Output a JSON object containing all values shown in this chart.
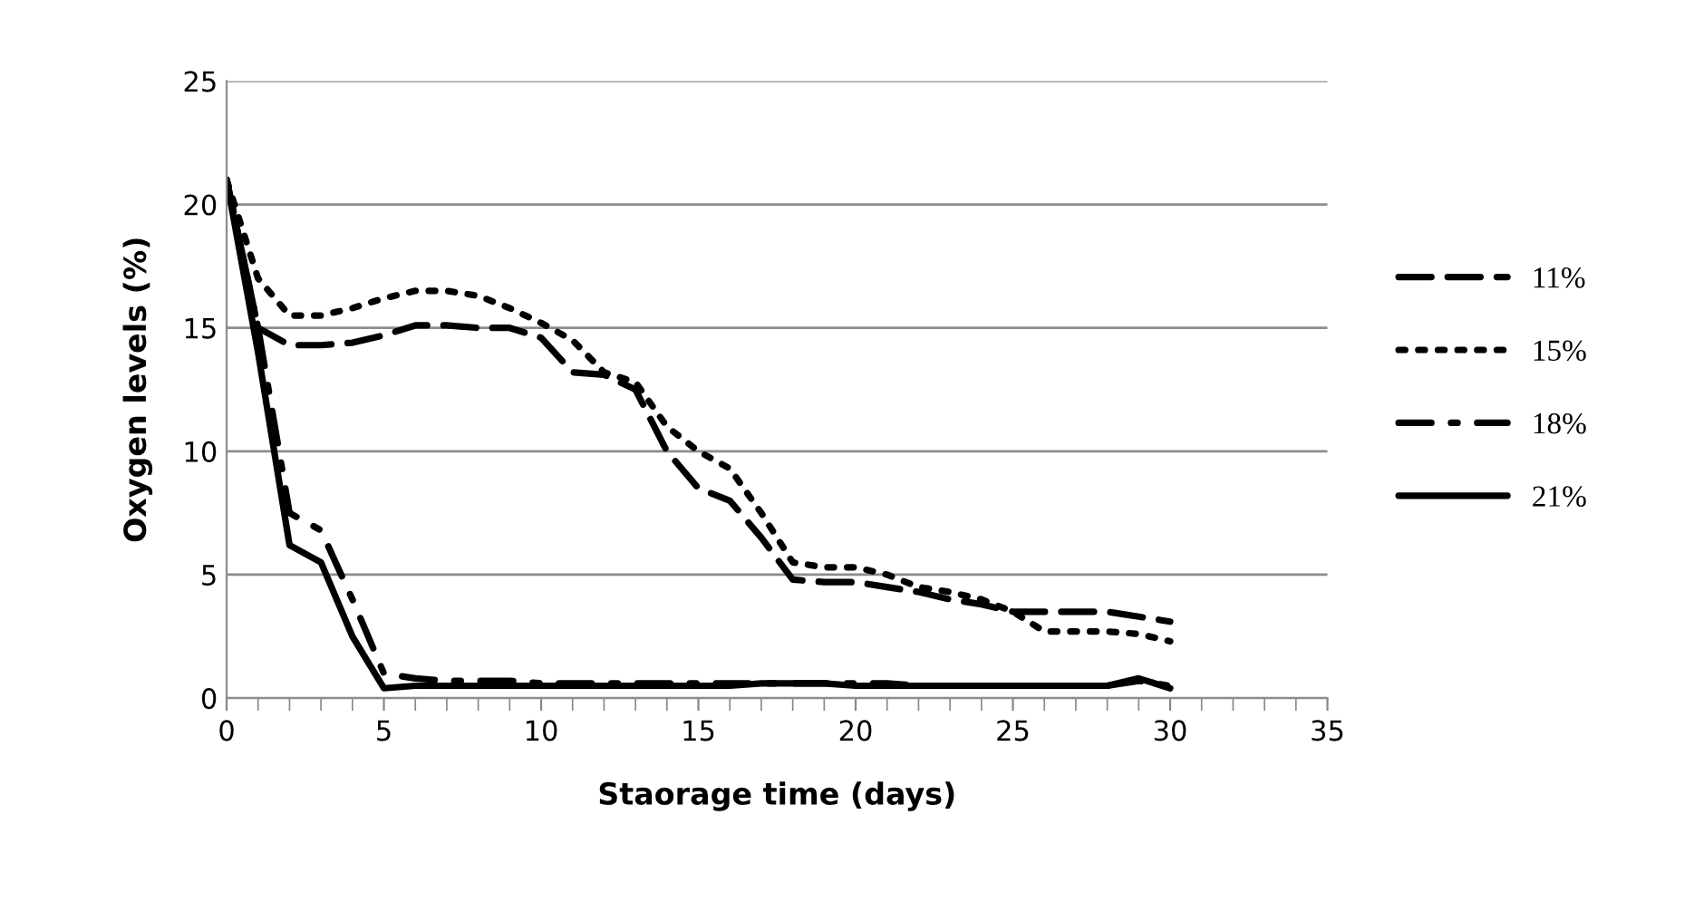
{
  "chart_data": {
    "type": "line",
    "xlabel": "Staorage time (days)",
    "ylabel": "Oxygen levels (%)",
    "x": [
      0,
      1,
      2,
      3,
      4,
      5,
      6,
      7,
      8,
      9,
      10,
      11,
      12,
      13,
      14,
      15,
      16,
      17,
      18,
      19,
      20,
      21,
      22,
      23,
      24,
      25,
      26,
      27,
      28,
      29,
      30
    ],
    "series": [
      {
        "name": "11%",
        "color": "#000000",
        "line_style": "dashed",
        "values": [
          21,
          15,
          14.3,
          14.3,
          14.4,
          14.7,
          15.1,
          15.1,
          15,
          15,
          14.6,
          13.2,
          13.1,
          12.5,
          10,
          8.5,
          8,
          6.5,
          4.8,
          4.7,
          4.7,
          4.5,
          4.3,
          4,
          3.8,
          3.5,
          3.5,
          3.5,
          3.5,
          3.3,
          3.1
        ]
      },
      {
        "name": "15%",
        "color": "#000000",
        "line_style": "dotted",
        "values": [
          21,
          17,
          15.5,
          15.5,
          15.8,
          16.2,
          16.5,
          16.5,
          16.3,
          15.8,
          15.2,
          14.5,
          13.2,
          12.8,
          11,
          10,
          9.3,
          7.5,
          5.5,
          5.3,
          5.3,
          5,
          4.5,
          4.3,
          4,
          3.5,
          2.7,
          2.7,
          2.7,
          2.6,
          2.3
        ]
      },
      {
        "name": "18%",
        "color": "#000000",
        "line_style": "dashdot",
        "values": [
          21,
          15,
          7.5,
          6.8,
          4,
          1,
          0.8,
          0.7,
          0.7,
          0.7,
          0.6,
          0.6,
          0.6,
          0.6,
          0.6,
          0.6,
          0.6,
          0.6,
          0.6,
          0.6,
          0.6,
          0.6,
          0.5,
          0.5,
          0.5,
          0.5,
          0.5,
          0.5,
          0.5,
          0.7,
          0.5
        ]
      },
      {
        "name": "21%",
        "color": "#000000",
        "line_style": "solid",
        "values": [
          21,
          14,
          6.2,
          5.5,
          2.5,
          0.4,
          0.5,
          0.5,
          0.5,
          0.5,
          0.5,
          0.5,
          0.5,
          0.5,
          0.5,
          0.5,
          0.5,
          0.6,
          0.6,
          0.6,
          0.5,
          0.5,
          0.5,
          0.5,
          0.5,
          0.5,
          0.5,
          0.5,
          0.5,
          0.8,
          0.4
        ]
      }
    ],
    "xlim": [
      0,
      35
    ],
    "xticks": [
      0,
      5,
      10,
      15,
      20,
      25,
      30,
      35
    ],
    "ylim": [
      0,
      25
    ],
    "yticks": [
      0,
      5,
      10,
      15,
      20,
      25
    ],
    "grid": "y",
    "legend": "right",
    "marker": "none"
  }
}
